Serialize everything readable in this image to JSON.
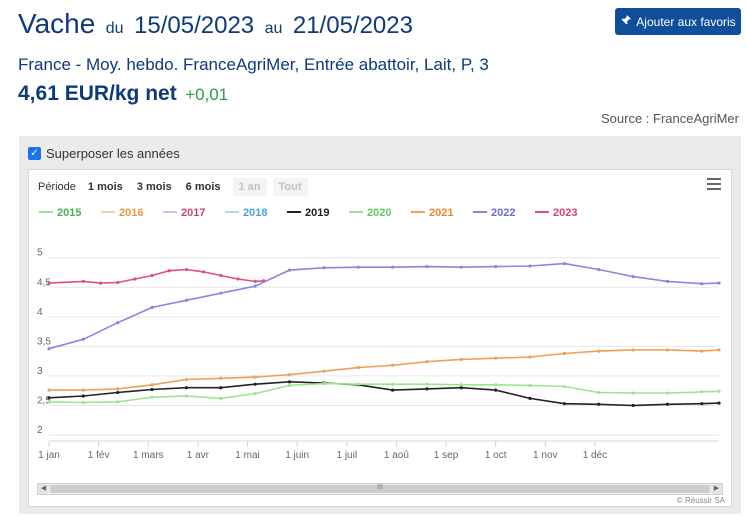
{
  "header": {
    "product": "Vache",
    "from_word": "du",
    "date_start": "15/05/2023",
    "to_word": "au",
    "date_end": "21/05/2023",
    "favorite_label": "Ajouter aux favoris",
    "subtitle": "France - Moy. hebdo. FranceAgriMer, Entrée abattoir, Lait, P, 3",
    "price": "4,61 EUR/kg net",
    "change": "+0,01",
    "source": "Source : FranceAgriMer"
  },
  "colors": {
    "brand": "#0f4e9a",
    "title": "#0e3a7a",
    "positive": "#27a045",
    "checkbox": "#1a73e8"
  },
  "controls": {
    "overlay_label": "Superposer les années",
    "overlay_checked": true,
    "period_label": "Période",
    "period_buttons": [
      "1 mois",
      "3 mois",
      "6 mois",
      "1 an",
      "Tout"
    ],
    "period_disabled": [
      "1 an",
      "Tout"
    ],
    "menu_icon": "hamburger-menu-icon",
    "credits": "© Réussir SA"
  },
  "chart_data": {
    "type": "line",
    "title": "",
    "xlabel": "",
    "ylabel": "",
    "ylim": [
      2,
      5.3
    ],
    "yticks": [
      2,
      2.5,
      3,
      3.5,
      4,
      4.5,
      5
    ],
    "ytick_labels": [
      "2",
      "2,5",
      "3",
      "3,5",
      "4",
      "4,5",
      "5"
    ],
    "x_axis": "week of year",
    "x_month_labels": [
      "1 jan",
      "1 fév",
      "1 mars",
      "1 avr",
      "1 mai",
      "1 juin",
      "1 juil",
      "1 aoû",
      "1 sep",
      "1 oct",
      "1 nov",
      "1 déc"
    ],
    "legend_position": "top",
    "grid": true,
    "series": [
      {
        "name": "2015",
        "color": "#9fdc9f",
        "text_color": "#4caf50",
        "points": []
      },
      {
        "name": "2016",
        "color": "#f5cfa6",
        "text_color": "#e69a43",
        "points": []
      },
      {
        "name": "2017",
        "color": "#c9c2e6",
        "text_color": "#c44a6b",
        "points": []
      },
      {
        "name": "2018",
        "color": "#b8d7ee",
        "text_color": "#4aa3d9",
        "points": []
      },
      {
        "name": "2019",
        "color": "#222222",
        "text_color": "#222222",
        "points": [
          [
            0,
            2.63
          ],
          [
            4,
            2.66
          ],
          [
            8,
            2.72
          ],
          [
            12,
            2.77
          ],
          [
            16,
            2.8
          ],
          [
            20,
            2.8
          ],
          [
            24,
            2.86
          ],
          [
            28,
            2.9
          ],
          [
            32,
            2.88
          ],
          [
            36,
            2.85
          ],
          [
            40,
            2.76
          ],
          [
            44,
            2.78
          ],
          [
            48,
            2.8
          ],
          [
            52,
            2.76
          ],
          [
            56,
            2.62
          ],
          [
            60,
            2.53
          ],
          [
            64,
            2.52
          ],
          [
            68,
            2.5
          ],
          [
            72,
            2.52
          ],
          [
            76,
            2.53
          ],
          [
            78,
            2.54
          ]
        ]
      },
      {
        "name": "2020",
        "color": "#9be58f",
        "text_color": "#5fc95f",
        "points": [
          [
            0,
            2.56
          ],
          [
            4,
            2.55
          ],
          [
            8,
            2.56
          ],
          [
            12,
            2.64
          ],
          [
            16,
            2.66
          ],
          [
            20,
            2.62
          ],
          [
            24,
            2.7
          ],
          [
            28,
            2.84
          ],
          [
            32,
            2.87
          ],
          [
            36,
            2.86
          ],
          [
            40,
            2.86
          ],
          [
            44,
            2.86
          ],
          [
            48,
            2.85
          ],
          [
            52,
            2.85
          ],
          [
            56,
            2.84
          ],
          [
            60,
            2.82
          ],
          [
            64,
            2.72
          ],
          [
            68,
            2.71
          ],
          [
            72,
            2.71
          ],
          [
            76,
            2.73
          ],
          [
            78,
            2.74
          ]
        ]
      },
      {
        "name": "2021",
        "color": "#f0a05a",
        "text_color": "#e8852e",
        "points": [
          [
            0,
            2.76
          ],
          [
            4,
            2.76
          ],
          [
            8,
            2.78
          ],
          [
            12,
            2.85
          ],
          [
            16,
            2.94
          ],
          [
            20,
            2.96
          ],
          [
            24,
            2.98
          ],
          [
            28,
            3.02
          ],
          [
            32,
            3.08
          ],
          [
            36,
            3.14
          ],
          [
            40,
            3.18
          ],
          [
            44,
            3.24
          ],
          [
            48,
            3.28
          ],
          [
            52,
            3.3
          ],
          [
            56,
            3.32
          ],
          [
            60,
            3.38
          ],
          [
            64,
            3.42
          ],
          [
            68,
            3.44
          ],
          [
            72,
            3.44
          ],
          [
            76,
            3.42
          ],
          [
            78,
            3.44
          ]
        ]
      },
      {
        "name": "2022",
        "color": "#8a86e0",
        "text_color": "#6f6bd4",
        "points": [
          [
            0,
            3.46
          ],
          [
            4,
            3.62
          ],
          [
            8,
            3.9
          ],
          [
            12,
            4.16
          ],
          [
            16,
            4.28
          ],
          [
            20,
            4.4
          ],
          [
            24,
            4.52
          ],
          [
            28,
            4.79
          ],
          [
            32,
            4.83
          ],
          [
            36,
            4.84
          ],
          [
            40,
            4.84
          ],
          [
            44,
            4.85
          ],
          [
            48,
            4.84
          ],
          [
            52,
            4.85
          ],
          [
            56,
            4.86
          ],
          [
            60,
            4.9
          ],
          [
            64,
            4.8
          ],
          [
            68,
            4.68
          ],
          [
            72,
            4.6
          ],
          [
            76,
            4.56
          ],
          [
            78,
            4.57
          ]
        ]
      },
      {
        "name": "2023",
        "color": "#e0507a",
        "text_color": "#d9406a",
        "points": [
          [
            0,
            4.57
          ],
          [
            4,
            4.6
          ],
          [
            6,
            4.57
          ],
          [
            8,
            4.58
          ],
          [
            10,
            4.64
          ],
          [
            12,
            4.7
          ],
          [
            14,
            4.78
          ],
          [
            16,
            4.8
          ],
          [
            18,
            4.76
          ],
          [
            20,
            4.7
          ],
          [
            22,
            4.64
          ],
          [
            24,
            4.6
          ],
          [
            25,
            4.61
          ]
        ]
      }
    ]
  }
}
